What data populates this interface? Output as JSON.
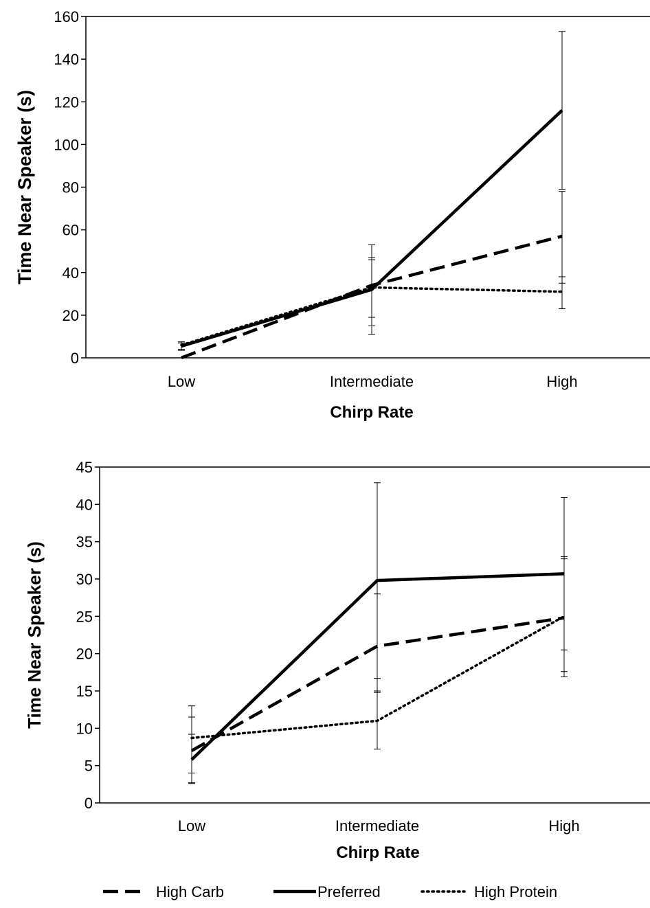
{
  "chart_data": [
    {
      "type": "line",
      "categories": [
        "Low",
        "Intermediate",
        "High"
      ],
      "xlabel": "Chirp Rate",
      "ylabel": "Time Near Speaker (s)",
      "ylim": [
        0,
        160
      ],
      "yticks": [
        0,
        20,
        40,
        60,
        80,
        100,
        120,
        140,
        160
      ],
      "series": [
        {
          "name": "High Carb",
          "style": "dashed",
          "values": [
            0,
            34,
            57
          ],
          "err_low": [
            0,
            11,
            23
          ],
          "err_high": [
            0,
            53,
            78
          ]
        },
        {
          "name": "Preferred",
          "style": "solid",
          "values": [
            5.5,
            32,
            116
          ],
          "err_low": [
            3.5,
            15,
            79
          ],
          "err_high": [
            7.5,
            47,
            153
          ]
        },
        {
          "name": "High Protein",
          "style": "dotted",
          "values": [
            6,
            33,
            31
          ],
          "err_low": [
            4,
            19,
            35
          ],
          "err_high": [
            7,
            46,
            38
          ]
        }
      ]
    },
    {
      "type": "line",
      "categories": [
        "Low",
        "Intermediate",
        "High"
      ],
      "xlabel": "Chirp Rate",
      "ylabel": "Time Near Speaker (s)",
      "ylim": [
        0,
        45
      ],
      "yticks": [
        0,
        5,
        10,
        15,
        20,
        25,
        30,
        35,
        40,
        45
      ],
      "series": [
        {
          "name": "High Carb",
          "style": "dashed",
          "values": [
            7,
            21,
            24.8
          ],
          "err_low": [
            2.7,
            14.8,
            16.9
          ],
          "err_high": [
            11.5,
            28,
            33
          ]
        },
        {
          "name": "Preferred",
          "style": "solid",
          "values": [
            5.8,
            29.8,
            30.7
          ],
          "err_low": [
            2.6,
            16.7,
            20.5
          ],
          "err_high": [
            9.2,
            42.9,
            40.9
          ]
        },
        {
          "name": "High Protein",
          "style": "dotted",
          "values": [
            8.7,
            11,
            25
          ],
          "err_low": [
            4,
            7.2,
            17.6
          ],
          "err_high": [
            13,
            15,
            32.7
          ]
        }
      ]
    }
  ],
  "legend": [
    {
      "label": "High Carb",
      "style": "dashed"
    },
    {
      "label": "Preferred",
      "style": "solid"
    },
    {
      "label": "High Protein",
      "style": "dotted"
    }
  ],
  "colors": {
    "line": "#000000",
    "background": "#ffffff"
  }
}
